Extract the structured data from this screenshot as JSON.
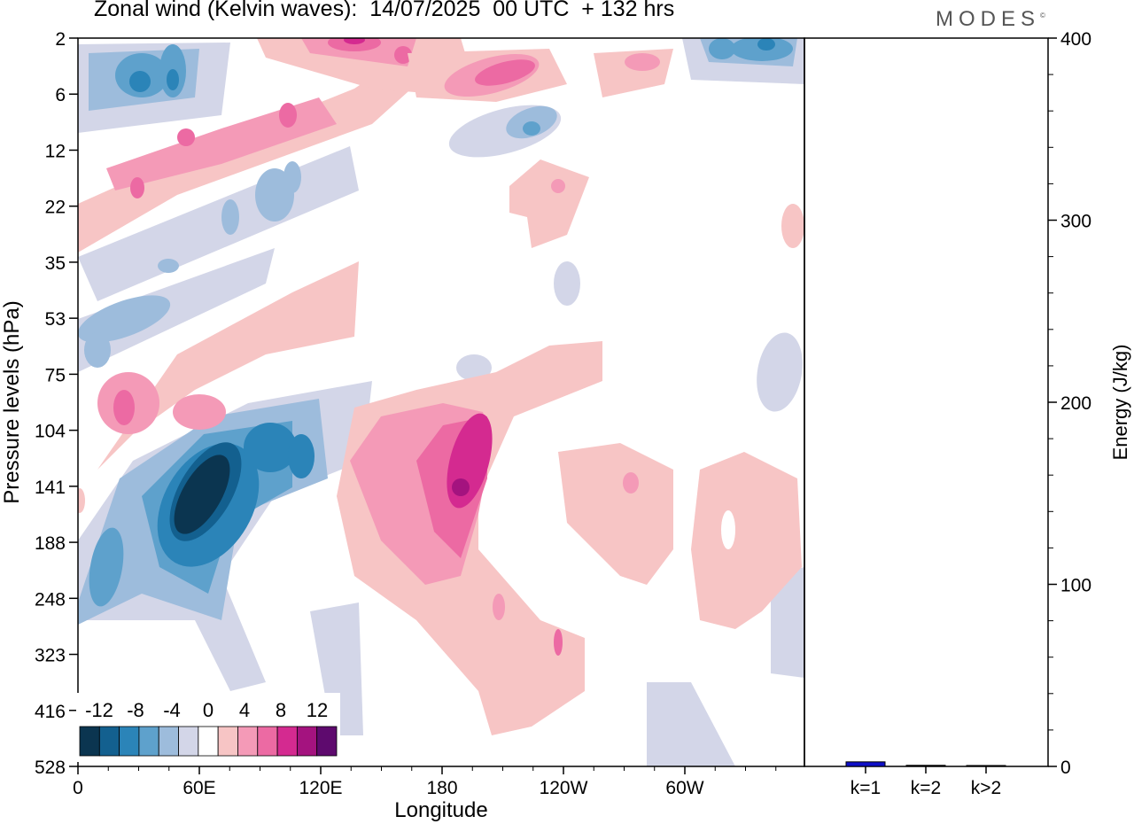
{
  "header": {
    "title": "Zonal wind (Kelvin waves):  14/07/2025  00 UTC  + 132 hrs",
    "logo": "MODES",
    "logo_mark": "©"
  },
  "chart_data": [
    {
      "type": "heatmap",
      "title": "Zonal wind (Kelvin waves):  14/07/2025  00 UTC  + 132 hrs",
      "xlabel": "Longitude",
      "ylabel": "Pressure levels (hPa)",
      "x_ticks": [
        "0",
        "60E",
        "120E",
        "180",
        "120W",
        "60W"
      ],
      "y_ticks": [
        "2",
        "6",
        "12",
        "22",
        "35",
        "53",
        "75",
        "104",
        "141",
        "188",
        "248",
        "323",
        "416",
        "528"
      ],
      "colorbar": {
        "labels": [
          "-12",
          "-8",
          "-4",
          "0",
          "4",
          "8",
          "12"
        ],
        "levels": [
          -14,
          -12,
          -10,
          -8,
          -6,
          -4,
          -2,
          2,
          4,
          6,
          8,
          10,
          12,
          14
        ],
        "colors": [
          "#0b3550",
          "#13608f",
          "#2b84b8",
          "#5ea1cc",
          "#9dbcdc",
          "#d3d6e8",
          "#ffffff",
          "#f7c5c5",
          "#f49ab7",
          "#ec6aa3",
          "#d42a90",
          "#a4137f",
          "#5e0a6e"
        ]
      },
      "features": [
        {
          "sign": "negative",
          "peak": -14,
          "lon_deg": 66,
          "p_hPa": 150
        },
        {
          "sign": "positive",
          "peak": 10,
          "lon_deg": 191,
          "p_hPa": 141
        },
        {
          "sign": "positive",
          "peak": 8,
          "lon_deg": 210,
          "p_hPa": 5
        },
        {
          "sign": "negative",
          "peak": -8,
          "lon_deg": 30,
          "p_hPa": 5
        }
      ]
    },
    {
      "type": "bar",
      "categories": [
        "k=1",
        "k=2",
        "k>2"
      ],
      "values": [
        2.5,
        0.6,
        0.5
      ],
      "ylabel": "Energy (J/kg)",
      "ylim": [
        0,
        400
      ],
      "y_ticks": [
        "0",
        "100",
        "200",
        "300",
        "400"
      ],
      "bar_color": "#1010c8"
    }
  ]
}
